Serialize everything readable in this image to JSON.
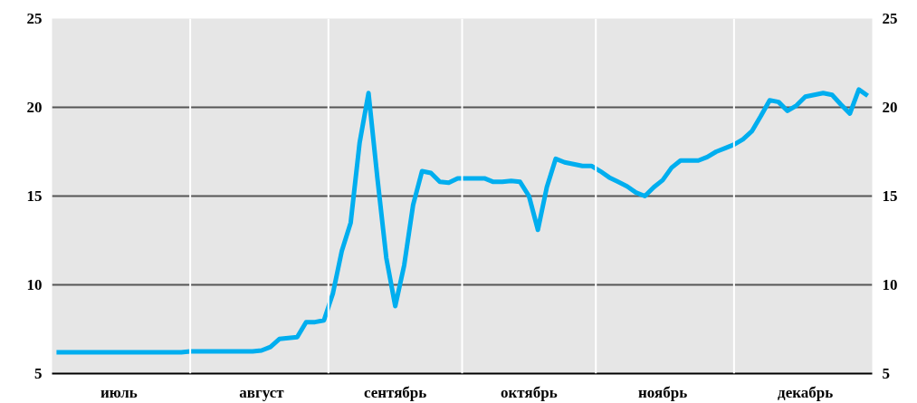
{
  "chart_data": {
    "type": "line",
    "categories": [
      null,
      null,
      null,
      null,
      null,
      null,
      null,
      "июль",
      null,
      null,
      null,
      null,
      null,
      null,
      null,
      null,
      null,
      null,
      null,
      null,
      null,
      null,
      null,
      "август",
      null,
      null,
      null,
      null,
      null,
      null,
      null,
      null,
      null,
      null,
      null,
      null,
      null,
      null,
      "сентябрь",
      null,
      null,
      null,
      null,
      null,
      null,
      null,
      null,
      null,
      null,
      null,
      null,
      null,
      null,
      "октябрь",
      null,
      null,
      null,
      null,
      null,
      null,
      null,
      null,
      null,
      null,
      null,
      null,
      null,
      null,
      "ноябрь",
      null,
      null,
      null,
      null,
      null,
      null,
      null,
      null,
      null,
      null,
      null,
      null,
      null,
      null,
      null,
      "декабрь",
      null,
      null,
      null,
      null,
      null,
      null,
      null
    ],
    "series": [
      {
        "color": "#00aeef",
        "values": [
          6.2,
          6.2,
          6.2,
          6.2,
          6.2,
          6.2,
          6.2,
          6.2,
          6.2,
          6.2,
          6.2,
          6.2,
          6.2,
          6.2,
          6.2,
          6.25,
          6.25,
          6.25,
          6.25,
          6.25,
          6.25,
          6.25,
          6.25,
          6.3,
          6.5,
          6.95,
          7.0,
          7.05,
          7.9,
          7.9,
          8.0,
          9.5,
          11.9,
          13.5,
          18.0,
          20.8,
          16.0,
          11.5,
          8.8,
          11.1,
          14.5,
          16.4,
          16.3,
          15.8,
          15.75,
          16.0,
          16.0,
          16.0,
          16.0,
          15.8,
          15.8,
          15.85,
          15.8,
          15.0,
          13.1,
          15.5,
          17.1,
          16.9,
          16.8,
          16.7,
          16.7,
          16.4,
          16.05,
          15.8,
          15.55,
          15.2,
          15.0,
          15.5,
          15.9,
          16.6,
          17.0,
          17.0,
          17.0,
          17.2,
          17.5,
          17.7,
          17.9,
          18.2,
          18.65,
          19.5,
          20.4,
          20.3,
          19.8,
          20.1,
          20.6,
          20.7,
          20.8,
          20.7,
          20.15,
          19.65,
          21.0,
          20.65
        ]
      }
    ],
    "ylim": [
      5,
      25
    ],
    "yticks": [
      5,
      10,
      15,
      20,
      25
    ],
    "y2lim": [
      5,
      25
    ],
    "y2ticks": [
      5,
      10,
      15,
      20,
      25
    ],
    "grid": true,
    "marker": "none",
    "line_style": "solid"
  }
}
